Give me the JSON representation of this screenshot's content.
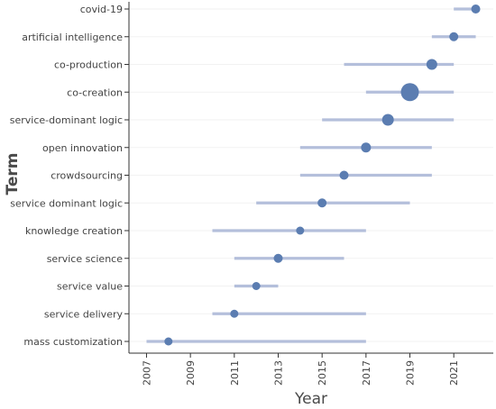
{
  "chart_data": {
    "type": "scatter",
    "subtype": "range-dot",
    "xlabel": "Year",
    "ylabel": "Term",
    "xlim": [
      2006.2,
      2022.8
    ],
    "x_ticks": [
      "2007",
      "2009",
      "2011",
      "2013",
      "2015",
      "2017",
      "2019",
      "2021"
    ],
    "colors": {
      "point": "#5b7db1",
      "range_line": "#b4bfdb",
      "axis": "#333333",
      "grid": "#f2f2f2"
    },
    "terms": [
      {
        "term": "covid-19",
        "start": 2021,
        "end": 2022,
        "median": 2022,
        "size": 5
      },
      {
        "term": "artificial intelligence",
        "start": 2020,
        "end": 2022,
        "median": 2021,
        "size": 5
      },
      {
        "term": "co-production",
        "start": 2016,
        "end": 2021,
        "median": 2020,
        "size": 6
      },
      {
        "term": "co-creation",
        "start": 2017,
        "end": 2021,
        "median": 2019,
        "size": 10
      },
      {
        "term": "service-dominant logic",
        "start": 2015,
        "end": 2021,
        "median": 2018,
        "size": 6.5
      },
      {
        "term": "open innovation",
        "start": 2014,
        "end": 2020,
        "median": 2017,
        "size": 5.5
      },
      {
        "term": "crowdsourcing",
        "start": 2014,
        "end": 2020,
        "median": 2016,
        "size": 5
      },
      {
        "term": "service dominant logic",
        "start": 2012,
        "end": 2019,
        "median": 2015,
        "size": 5
      },
      {
        "term": "knowledge creation",
        "start": 2010,
        "end": 2017,
        "median": 2014,
        "size": 4.5
      },
      {
        "term": "service science",
        "start": 2011,
        "end": 2016,
        "median": 2013,
        "size": 5
      },
      {
        "term": "service value",
        "start": 2011,
        "end": 2013,
        "median": 2012,
        "size": 4.5
      },
      {
        "term": "service delivery",
        "start": 2010,
        "end": 2017,
        "median": 2011,
        "size": 4.5
      },
      {
        "term": "mass customization",
        "start": 2007,
        "end": 2017,
        "median": 2008,
        "size": 4.5
      }
    ]
  }
}
